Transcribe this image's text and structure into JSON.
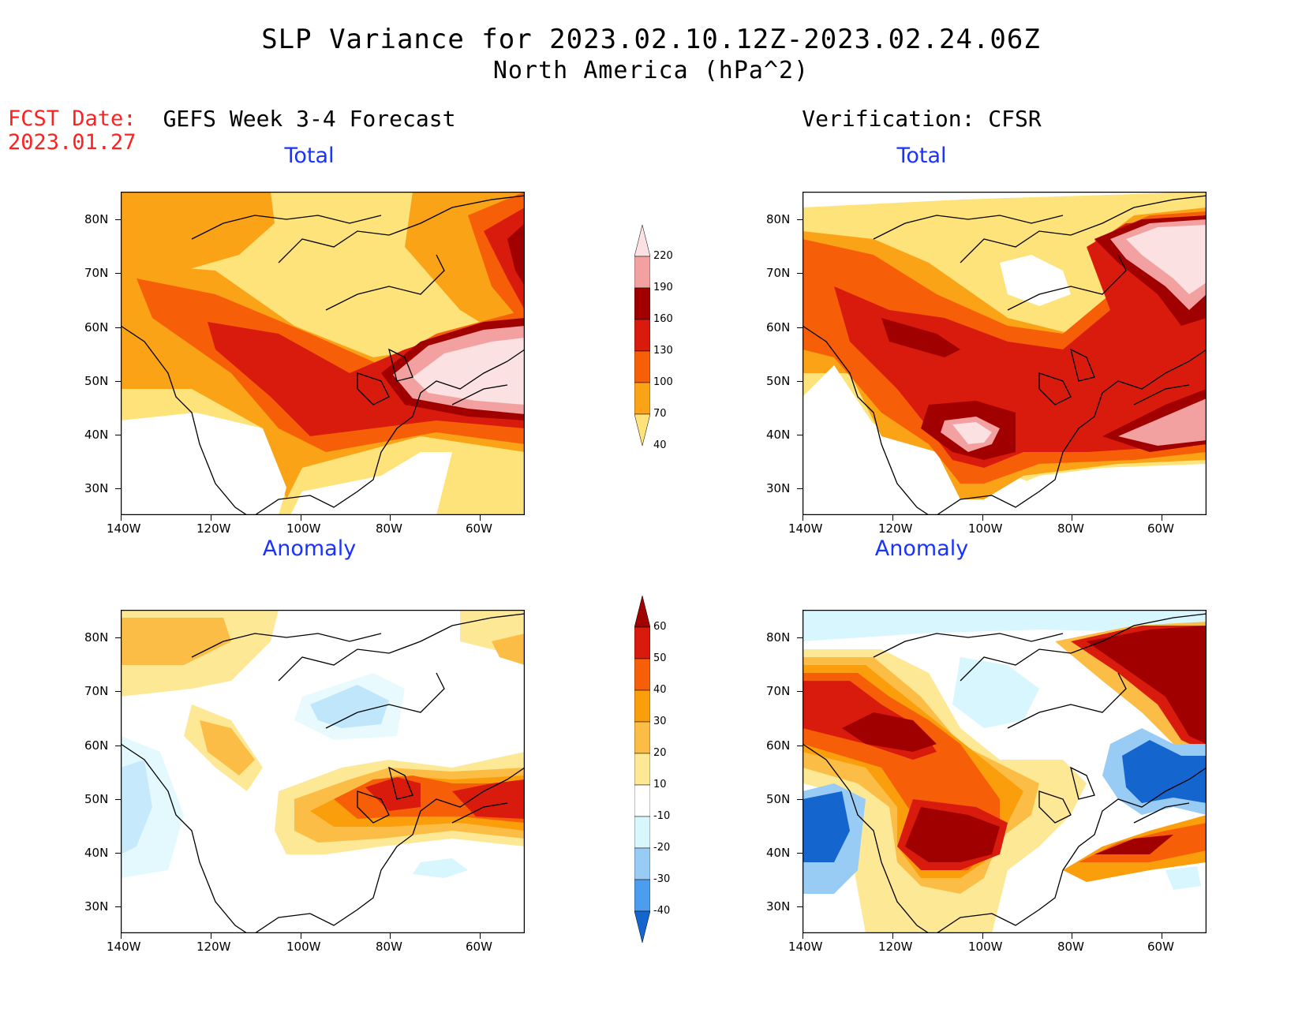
{
  "title_line1": "SLP Variance for 2023.02.10.12Z-2023.02.24.06Z",
  "title_line2": "North America (hPa^2)",
  "fcst_label": "FCST Date:",
  "fcst_date": "2023.01.27",
  "left_heading": "GEFS Week 3-4 Forecast",
  "right_heading": "Verification: CFSR",
  "panel_titles": {
    "top_left": "Total",
    "top_right": "Total",
    "bottom_left": "Anomaly",
    "bottom_right": "Anomaly"
  },
  "lat_ticks": [
    "80N",
    "70N",
    "60N",
    "50N",
    "40N",
    "30N"
  ],
  "lon_ticks": [
    "140W",
    "120W",
    "100W",
    "80W",
    "60W"
  ],
  "total_scale": {
    "labels": [
      "220",
      "190",
      "160",
      "130",
      "100",
      "70",
      "40"
    ],
    "colors": [
      "#fbe1e1",
      "#f2a0a0",
      "#a00000",
      "#d81b0c",
      "#f75e08",
      "#fba316",
      "#fde37a"
    ]
  },
  "anomaly_scale": {
    "labels": [
      "60",
      "50",
      "40",
      "30",
      "20",
      "10",
      "-10",
      "-20",
      "-30",
      "-40"
    ],
    "colors": [
      "#a00000",
      "#d81b0c",
      "#f75e08",
      "#fb9e0b",
      "#fbbd45",
      "#fde896",
      "#ffffff",
      "#d8f6fd",
      "#99ccf5",
      "#4c9cef",
      "#1565cf"
    ]
  }
}
